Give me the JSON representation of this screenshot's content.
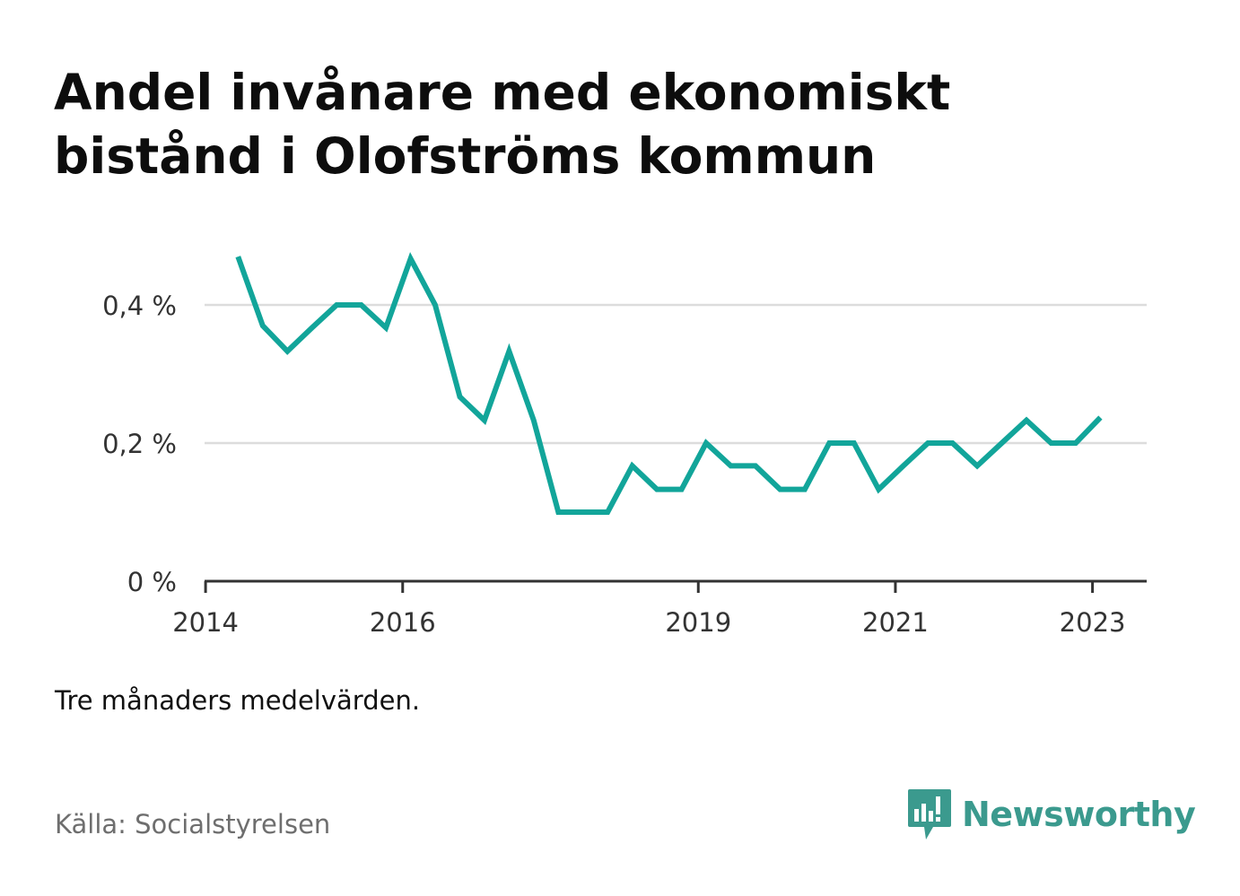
{
  "header": {
    "title": "Andel invånare med ekonomiskt bistånd i Olofströms kommun"
  },
  "footer": {
    "note": "Tre månaders medelvärden.",
    "source": "Källa: Socialstyrelsen",
    "brand": "Newsworthy"
  },
  "colors": {
    "line": "#12a59a",
    "grid": "#dcdcdc",
    "axis": "#333333",
    "brand": "#3b9a8e"
  },
  "chart_data": {
    "type": "line",
    "title": "Andel invånare med ekonomiskt bistånd i Olofströms kommun",
    "xlabel": "",
    "ylabel": "",
    "ylim": [
      0,
      0.5
    ],
    "y_ticks": [
      {
        "value": 0,
        "label": "0 %"
      },
      {
        "value": 0.2,
        "label": "0,2 %"
      },
      {
        "value": 0.4,
        "label": "0,4 %"
      }
    ],
    "x_ticks": [
      {
        "value": 2014.0,
        "label": "2014"
      },
      {
        "value": 2016.0,
        "label": "2016"
      },
      {
        "value": 2019.0,
        "label": "2019"
      },
      {
        "value": 2021.0,
        "label": "2021"
      },
      {
        "value": 2023.0,
        "label": "2023"
      }
    ],
    "xlim": [
      2013.99,
      2023.55
    ],
    "grid": true,
    "series": [
      {
        "x": [
          2014.33,
          2014.58,
          2014.83,
          2015.08,
          2015.33,
          2015.58,
          2015.83,
          2016.08,
          2016.33,
          2016.58,
          2016.83,
          2017.08,
          2017.33,
          2017.58,
          2017.83,
          2018.08,
          2018.33,
          2018.58,
          2018.83,
          2019.08,
          2019.33,
          2019.58,
          2019.83,
          2020.08,
          2020.33,
          2020.58,
          2020.83,
          2021.08,
          2021.33,
          2021.58,
          2021.83,
          2022.08,
          2022.33,
          2022.58,
          2022.83,
          2023.08
        ],
        "values": [
          0.47,
          0.37,
          0.333,
          0.367,
          0.4,
          0.4,
          0.367,
          0.467,
          0.4,
          0.267,
          0.233,
          0.333,
          0.233,
          0.1,
          0.1,
          0.1,
          0.167,
          0.133,
          0.133,
          0.2,
          0.167,
          0.167,
          0.133,
          0.133,
          0.2,
          0.2,
          0.133,
          0.167,
          0.2,
          0.2,
          0.167,
          0.2,
          0.233,
          0.2,
          0.2,
          0.237
        ]
      }
    ]
  }
}
